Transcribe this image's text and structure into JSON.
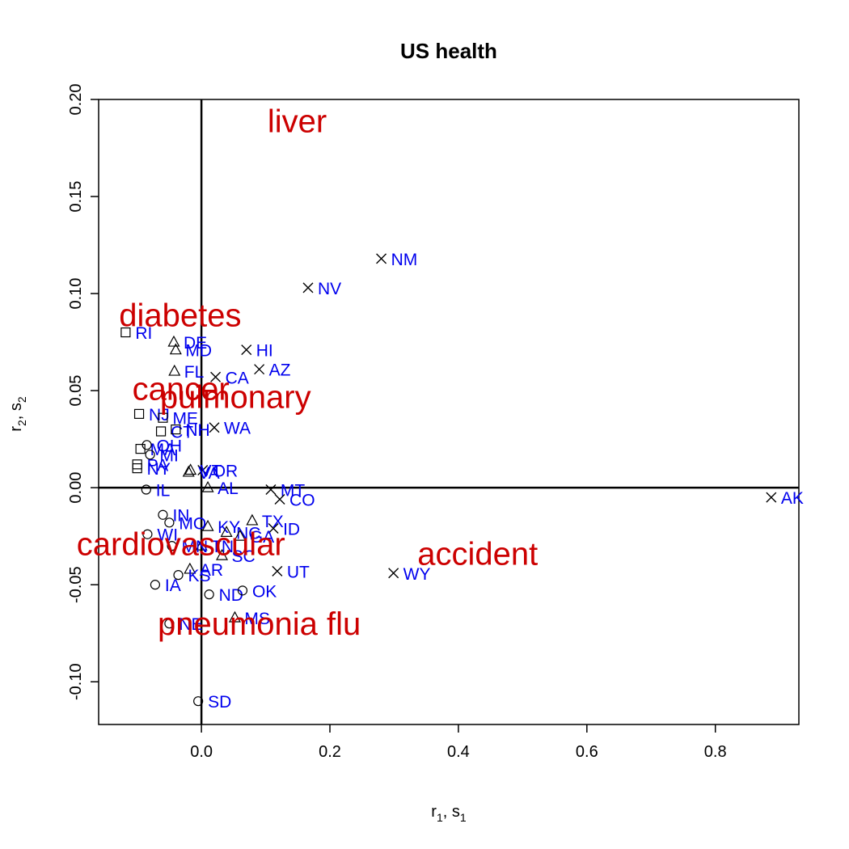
{
  "chart_data": {
    "type": "scatter",
    "title": "US health",
    "xlabel": {
      "main": "r",
      "sub1": "1",
      "sep": ", s",
      "sub2": "1"
    },
    "ylabel": {
      "main": "r",
      "sub1": "2",
      "sep": ", s",
      "sub2": "2"
    },
    "xlim": [
      -0.16,
      0.93
    ],
    "ylim": [
      -0.122,
      0.2
    ],
    "x_ticks": [
      0.0,
      0.2,
      0.4,
      0.6,
      0.8
    ],
    "x_tick_labels": [
      "0.0",
      "0.2",
      "0.4",
      "0.6",
      "0.8"
    ],
    "y_ticks": [
      -0.1,
      -0.05,
      0.0,
      0.05,
      0.1,
      0.15,
      0.2
    ],
    "y_tick_labels": [
      "-0.10",
      "-0.05",
      "0.00",
      "0.05",
      "0.10",
      "0.15",
      "0.20"
    ],
    "reference_lines": {
      "x": 0,
      "y": 0
    },
    "colors": {
      "points": "#000000",
      "state_labels": "#0000ee",
      "variable_labels": "#cc0000"
    },
    "points": [
      {
        "label": "AK",
        "x": 0.887,
        "y": -0.005,
        "marker": "cross"
      },
      {
        "label": "NM",
        "x": 0.28,
        "y": 0.118,
        "marker": "cross"
      },
      {
        "label": "NV",
        "x": 0.166,
        "y": 0.103,
        "marker": "cross"
      },
      {
        "label": "WY",
        "x": 0.299,
        "y": -0.044,
        "marker": "cross"
      },
      {
        "label": "HI",
        "x": 0.07,
        "y": 0.071,
        "marker": "cross"
      },
      {
        "label": "AZ",
        "x": 0.09,
        "y": 0.061,
        "marker": "cross"
      },
      {
        "label": "CA",
        "x": 0.022,
        "y": 0.057,
        "marker": "cross"
      },
      {
        "label": "WA",
        "x": 0.02,
        "y": 0.031,
        "marker": "cross"
      },
      {
        "label": "MT",
        "x": 0.108,
        "y": -0.001,
        "marker": "cross"
      },
      {
        "label": "CO",
        "x": 0.122,
        "y": -0.006,
        "marker": "cross"
      },
      {
        "label": "ID",
        "x": 0.112,
        "y": -0.021,
        "marker": "cross"
      },
      {
        "label": "UT",
        "x": 0.118,
        "y": -0.043,
        "marker": "cross"
      },
      {
        "label": "OR",
        "x": 0.002,
        "y": 0.009,
        "marker": "cross"
      },
      {
        "label": "VT",
        "x": -0.017,
        "y": 0.009,
        "marker": "triangle"
      },
      {
        "label": "VA",
        "x": -0.02,
        "y": 0.008,
        "marker": "triangle"
      },
      {
        "label": "AL",
        "x": 0.01,
        "y": 0.0,
        "marker": "triangle"
      },
      {
        "label": "DE",
        "x": -0.043,
        "y": 0.075,
        "marker": "triangle"
      },
      {
        "label": "MD",
        "x": -0.04,
        "y": 0.071,
        "marker": "triangle"
      },
      {
        "label": "FL",
        "x": -0.042,
        "y": 0.06,
        "marker": "triangle"
      },
      {
        "label": "TX",
        "x": 0.079,
        "y": -0.017,
        "marker": "triangle"
      },
      {
        "label": "KY",
        "x": 0.01,
        "y": -0.02,
        "marker": "triangle"
      },
      {
        "label": "NC",
        "x": 0.039,
        "y": -0.023,
        "marker": "triangle"
      },
      {
        "label": "GA",
        "x": 0.06,
        "y": -0.025,
        "marker": "triangle"
      },
      {
        "label": "SC",
        "x": 0.032,
        "y": -0.035,
        "marker": "triangle"
      },
      {
        "label": "TN",
        "x": 0.0,
        "y": -0.03,
        "marker": "triangle"
      },
      {
        "label": "AR",
        "x": -0.018,
        "y": -0.042,
        "marker": "triangle"
      },
      {
        "label": "MS",
        "x": 0.052,
        "y": -0.067,
        "marker": "triangle"
      },
      {
        "label": "RI",
        "x": -0.118,
        "y": 0.08,
        "marker": "square"
      },
      {
        "label": "NJ",
        "x": -0.097,
        "y": 0.038,
        "marker": "square"
      },
      {
        "label": "ME",
        "x": -0.06,
        "y": 0.036,
        "marker": "square"
      },
      {
        "label": "CT",
        "x": -0.063,
        "y": 0.029,
        "marker": "square"
      },
      {
        "label": "NH",
        "x": -0.04,
        "y": 0.03,
        "marker": "square"
      },
      {
        "label": "PA",
        "x": -0.1,
        "y": 0.012,
        "marker": "square"
      },
      {
        "label": "NY",
        "x": -0.1,
        "y": 0.01,
        "marker": "square"
      },
      {
        "label": "MA",
        "x": -0.095,
        "y": 0.02,
        "marker": "square"
      },
      {
        "label": "MI",
        "x": -0.08,
        "y": 0.017,
        "marker": "circle"
      },
      {
        "label": "OH",
        "x": -0.085,
        "y": 0.022,
        "marker": "circle"
      },
      {
        "label": "IL",
        "x": -0.086,
        "y": -0.001,
        "marker": "circle"
      },
      {
        "label": "IN",
        "x": -0.06,
        "y": -0.014,
        "marker": "circle"
      },
      {
        "label": "MO",
        "x": -0.05,
        "y": -0.018,
        "marker": "circle"
      },
      {
        "label": "WI",
        "x": -0.084,
        "y": -0.024,
        "marker": "circle"
      },
      {
        "label": "MN",
        "x": -0.046,
        "y": -0.03,
        "marker": "circle"
      },
      {
        "label": "NE",
        "x": -0.05,
        "y": -0.07,
        "marker": "circle"
      },
      {
        "label": "IA",
        "x": -0.072,
        "y": -0.05,
        "marker": "circle"
      },
      {
        "label": "KS",
        "x": -0.036,
        "y": -0.045,
        "marker": "circle"
      },
      {
        "label": "ND",
        "x": 0.012,
        "y": -0.055,
        "marker": "circle"
      },
      {
        "label": "OK",
        "x": 0.064,
        "y": -0.053,
        "marker": "circle"
      },
      {
        "label": "SD",
        "x": -0.005,
        "y": -0.11,
        "marker": "circle"
      }
    ],
    "variables": [
      {
        "label": "liver",
        "x": 0.149,
        "y": 0.189
      },
      {
        "label": "diabetes",
        "x": -0.033,
        "y": 0.089
      },
      {
        "label": "cancer",
        "x": -0.032,
        "y": 0.051
      },
      {
        "label": "pulmonary",
        "x": 0.053,
        "y": 0.047
      },
      {
        "label": "cardiovascular",
        "x": -0.032,
        "y": -0.029
      },
      {
        "label": "accident",
        "x": 0.43,
        "y": -0.034
      },
      {
        "label": "pneumonia flu",
        "x": 0.09,
        "y": -0.07
      }
    ]
  }
}
